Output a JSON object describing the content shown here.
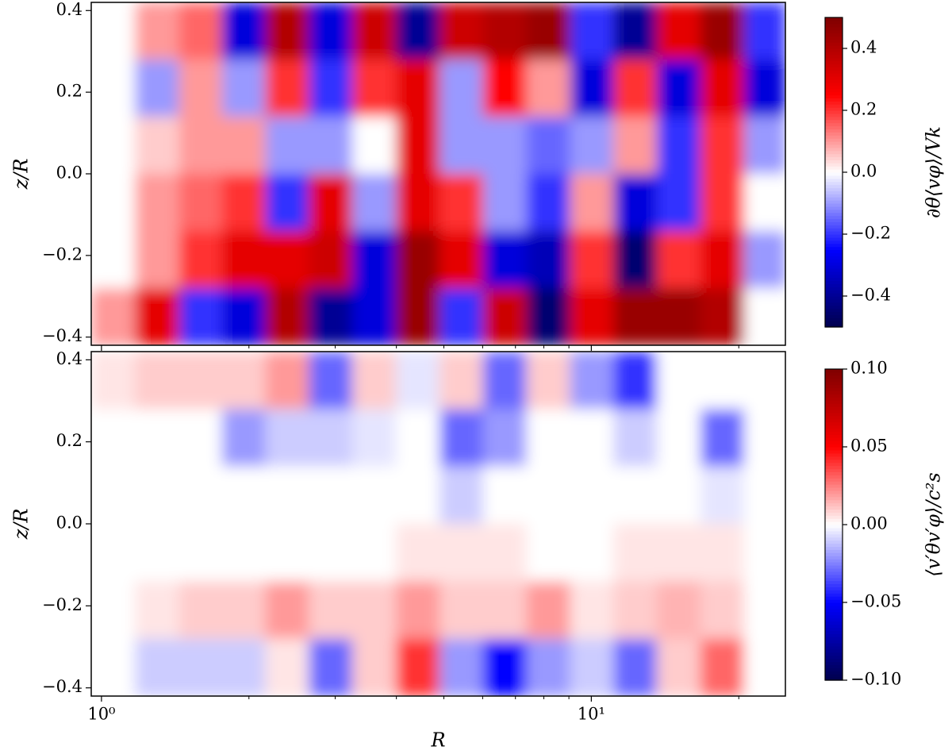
{
  "chart_data": [
    {
      "type": "heatmap",
      "colormap": "seismic",
      "ylabel": "z/R",
      "colorbar_label": "∂θ⟨vφ⟩/Vk",
      "xscale": "log",
      "xlim": [
        0.953,
        24.9
      ],
      "xticks": [
        1,
        10
      ],
      "xminorticks": [
        2,
        3,
        4,
        5,
        6,
        7,
        8,
        9,
        20
      ],
      "ylim": [
        -0.42,
        0.42
      ],
      "yticks": [
        {
          "value": -0.4,
          "label": "−0.4"
        },
        {
          "value": -0.2,
          "label": "−0.2"
        },
        {
          "value": 0,
          "label": "0.0"
        },
        0.2,
        0.4
      ],
      "clim": [
        -0.5,
        0.5
      ],
      "cticks": [
        {
          "value": -0.4,
          "label": "−0.4"
        },
        {
          "value": -0.2,
          "label": "−0.2"
        },
        {
          "value": 0,
          "label": "0.0"
        },
        0.2,
        0.4
      ],
      "x_edges": [
        0.953,
        1.17,
        1.44,
        1.76,
        2.16,
        2.65,
        3.25,
        3.99,
        4.9,
        6.01,
        7.37,
        9.05,
        11.1,
        13.6,
        16.7,
        20.5,
        24.9
      ],
      "y_edges": [
        0.42,
        0.28,
        0.14,
        0,
        -0.14,
        -0.28,
        -0.42
      ],
      "z": [
        [
          0,
          0.1,
          0.15,
          -0.3,
          0.4,
          -0.3,
          0.35,
          -0.4,
          0.35,
          0.4,
          0.45,
          -0.2,
          -0.4,
          0.3,
          0.45,
          -0.2
        ],
        [
          0,
          -0.1,
          0.1,
          -0.1,
          0.2,
          -0.2,
          0.2,
          0.3,
          -0.1,
          0.25,
          0.1,
          -0.3,
          0.2,
          -0.3,
          0.3,
          -0.3
        ],
        [
          0,
          0.05,
          0.1,
          0.1,
          -0.1,
          -0.1,
          0,
          0.3,
          -0.1,
          -0.1,
          -0.15,
          -0.1,
          0.1,
          -0.2,
          0.2,
          -0.1
        ],
        [
          0,
          0.1,
          0.15,
          0.2,
          -0.2,
          0.3,
          -0.1,
          0.3,
          0.2,
          -0.1,
          -0.2,
          0.1,
          -0.3,
          -0.2,
          0.2,
          0
        ],
        [
          0,
          0.1,
          0.2,
          0.3,
          0.3,
          0.35,
          -0.3,
          0.45,
          0.3,
          -0.3,
          -0.35,
          0.2,
          -0.45,
          0.2,
          0.3,
          -0.1
        ],
        [
          0.1,
          0.3,
          -0.2,
          -0.3,
          0.4,
          -0.4,
          -0.3,
          0.45,
          -0.2,
          0.35,
          -0.45,
          0.3,
          0.45,
          0.45,
          0.4,
          0
        ]
      ]
    },
    {
      "type": "heatmap",
      "colormap": "seismic",
      "ylabel": "z/R",
      "xlabel": "R",
      "colorbar_label": "⟨v′θv′φ⟩/c²s",
      "xscale": "log",
      "xlim": [
        0.953,
        24.9
      ],
      "xticks": [
        {
          "value": 1,
          "label": "10⁰"
        },
        {
          "value": 10,
          "label": "10¹"
        }
      ],
      "xminorticks": [
        2,
        3,
        4,
        5,
        6,
        7,
        8,
        9,
        20
      ],
      "ylim": [
        -0.42,
        0.42
      ],
      "yticks": [
        {
          "value": -0.4,
          "label": "−0.4"
        },
        {
          "value": -0.2,
          "label": "−0.2"
        },
        {
          "value": 0,
          "label": "0.0"
        },
        0.2,
        0.4
      ],
      "clim": [
        -0.1,
        0.1
      ],
      "cticks": [
        {
          "value": -0.1,
          "label": "−0.10"
        },
        {
          "value": -0.05,
          "label": "−0.05"
        },
        {
          "value": 0,
          "label": "0.00"
        },
        {
          "value": 0.05,
          "label": "0.05"
        },
        {
          "value": 0.1,
          "label": "0.10"
        }
      ],
      "x_edges": [
        0.953,
        1.17,
        1.44,
        1.76,
        2.16,
        2.65,
        3.25,
        3.99,
        4.9,
        6.01,
        7.37,
        9.05,
        11.1,
        13.6,
        16.7,
        20.5,
        24.9
      ],
      "y_edges": [
        0.42,
        0.28,
        0.14,
        0,
        -0.14,
        -0.28,
        -0.42
      ],
      "z": [
        [
          0.005,
          0.01,
          0.01,
          0.01,
          0.02,
          -0.03,
          0.01,
          -0.005,
          0.01,
          -0.03,
          0.01,
          -0.02,
          -0.04,
          0,
          0,
          0
        ],
        [
          0,
          0,
          0,
          -0.02,
          -0.01,
          -0.01,
          -0.005,
          0,
          -0.03,
          -0.02,
          0,
          0,
          -0.01,
          0,
          -0.03,
          0
        ],
        [
          0,
          0,
          0,
          0,
          0,
          0,
          0,
          0,
          -0.01,
          0,
          0,
          0,
          0,
          0,
          -0.005,
          0
        ],
        [
          0,
          0,
          0,
          0,
          0,
          0,
          0,
          0.005,
          0.005,
          0.005,
          0,
          0,
          0.005,
          0.005,
          0.005,
          0
        ],
        [
          0,
          0.005,
          0.01,
          0.01,
          0.02,
          0.01,
          0.01,
          0.02,
          0.01,
          0.01,
          0.02,
          0.005,
          0.01,
          0.015,
          0.01,
          0
        ],
        [
          0,
          -0.01,
          -0.01,
          -0.01,
          0.005,
          -0.03,
          0.01,
          0.04,
          -0.02,
          -0.05,
          -0.02,
          -0.01,
          -0.03,
          0.01,
          0.03,
          0
        ]
      ]
    }
  ]
}
